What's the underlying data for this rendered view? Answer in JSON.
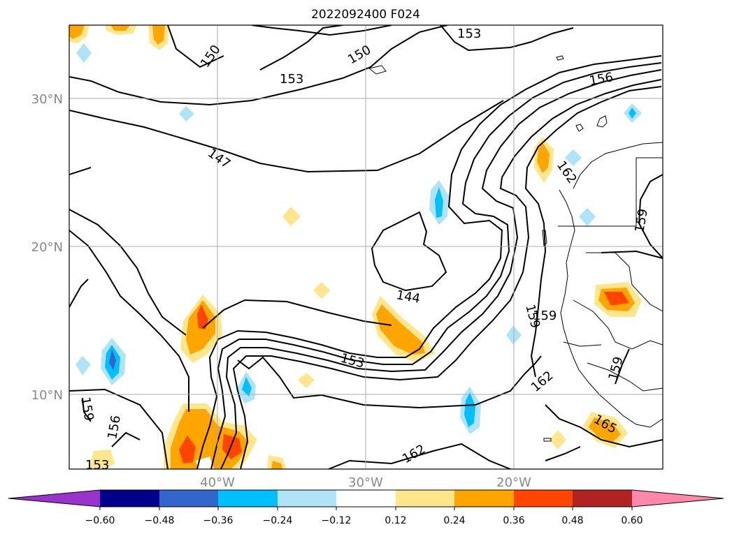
{
  "title": "2022092400 F024",
  "colors": {
    "purple": "#9933cc",
    "navy": "#00008b",
    "royal": "#3366cc",
    "cyan": "#00bfff",
    "lightblue": "#aee3f8",
    "white": "#ffffff",
    "paleyellow": "#ffe68c",
    "orange": "#ffa500",
    "redorange": "#ff4500",
    "darkred": "#b22222",
    "pink": "#ff88aa"
  },
  "map": {
    "lat_range": [
      5,
      35
    ],
    "lon_range": [
      -50,
      -10
    ],
    "gridlines": true,
    "lat_labels": [
      "30°N",
      "20°N",
      "10°N"
    ],
    "lon_labels": [
      "40°W",
      "30°W",
      "20°W"
    ],
    "contour_levels": [
      144,
      147,
      150,
      153,
      156,
      159,
      162,
      165
    ],
    "contour_labels": [
      {
        "text": "153"
      },
      {
        "text": "150"
      },
      {
        "text": "150"
      },
      {
        "text": "153"
      },
      {
        "text": "156"
      },
      {
        "text": "147"
      },
      {
        "text": "162"
      },
      {
        "text": "159"
      },
      {
        "text": "144"
      },
      {
        "text": "159"
      },
      {
        "text": "159"
      },
      {
        "text": "153"
      },
      {
        "text": "162"
      },
      {
        "text": "159"
      },
      {
        "text": "159"
      },
      {
        "text": "156"
      },
      {
        "text": "153"
      },
      {
        "text": "165"
      },
      {
        "text": "162"
      }
    ]
  },
  "colorbar": {
    "ticks": [
      "−0.60",
      "−0.48",
      "−0.36",
      "−0.24",
      "−0.12",
      "0.12",
      "0.24",
      "0.36",
      "0.48",
      "0.60"
    ],
    "extend": "both"
  }
}
